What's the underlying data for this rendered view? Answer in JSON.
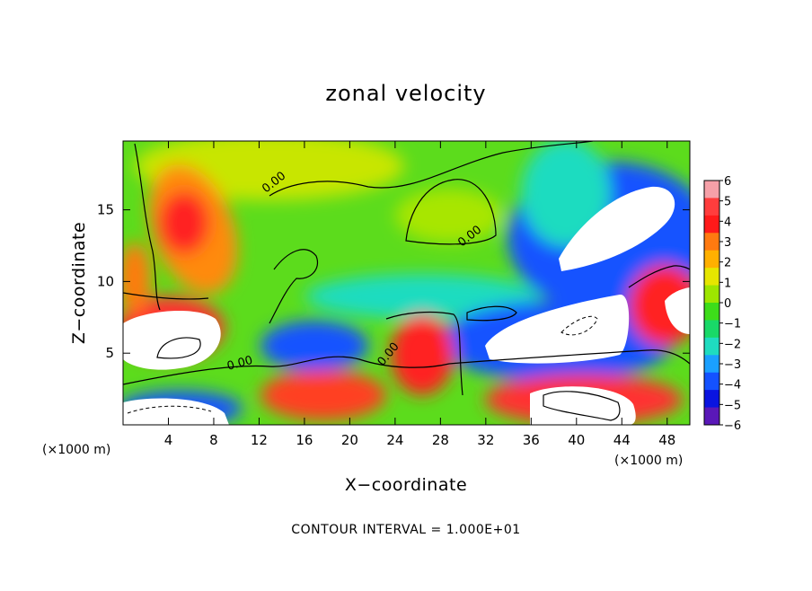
{
  "chart_data": {
    "type": "heatmap",
    "title": "zonal velocity",
    "xlabel": "X−coordinate",
    "ylabel": "Z−coordinate",
    "x_unit_label": "(×1000 m)",
    "y_unit_label": "(×1000 m)",
    "xlim": [
      0,
      50
    ],
    "ylim": [
      0,
      19.8
    ],
    "x_ticks": [
      4,
      8,
      12,
      16,
      20,
      24,
      28,
      32,
      36,
      40,
      44,
      48
    ],
    "y_ticks": [
      5,
      10,
      15
    ],
    "colorbar": {
      "ticks": [
        6,
        5,
        4,
        3,
        2,
        1,
        0,
        -1,
        -2,
        -3,
        -4,
        -5,
        -6
      ],
      "range": [
        -6,
        6
      ],
      "colors": [
        "#f6a0a8",
        "#ff3d3d",
        "#ff1a1a",
        "#ff7a10",
        "#ffb000",
        "#e6e600",
        "#9ee600",
        "#3ddd1a",
        "#19d968",
        "#1fdcc0",
        "#1aa0ff",
        "#1452ff",
        "#0a14e0",
        "#5a18b8"
      ],
      "out_of_range_color": "#ffffff"
    },
    "contour_interval_text": "CONTOUR INTERVAL =  1.000E+01",
    "contour_labels": [
      "0.00",
      "0.00",
      "0.00",
      "0.00"
    ],
    "features": [
      {
        "x": 5.5,
        "z": 14.2,
        "value": 4.8
      },
      {
        "x": 4.5,
        "z": 5.5,
        "value": 6.5
      },
      {
        "x": 2.0,
        "z": 7.5,
        "value": 4.5
      },
      {
        "x": 17.5,
        "z": 6.0,
        "value": -4.5
      },
      {
        "x": 17.5,
        "z": 2.5,
        "value": 4.5
      },
      {
        "x": 26.0,
        "z": 4.5,
        "value": 5.0
      },
      {
        "x": 43.0,
        "z": 13.0,
        "value": -7.0
      },
      {
        "x": 40.0,
        "z": 6.0,
        "value": -7.0
      },
      {
        "x": 47.5,
        "z": 8.5,
        "value": 6.5
      },
      {
        "x": 42.0,
        "z": 1.2,
        "value": 6.5
      },
      {
        "x": 29.0,
        "z": 15.0,
        "value": 1.0
      },
      {
        "x": 12.0,
        "z": 18.5,
        "value": 2.2
      },
      {
        "x": 38.0,
        "z": 9.0,
        "value": -1.5
      }
    ]
  }
}
